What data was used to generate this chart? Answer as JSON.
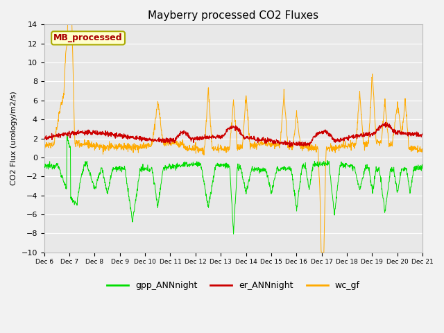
{
  "title": "Mayberry processed CO2 Fluxes",
  "ylabel": "CO2 Flux (urology/m2/s)",
  "ylim": [
    -10,
    14
  ],
  "yticks": [
    -10,
    -8,
    -6,
    -4,
    -2,
    0,
    2,
    4,
    6,
    8,
    10,
    12,
    14
  ],
  "n_points": 1500,
  "colors": {
    "gpp": "#00dd00",
    "er": "#cc0000",
    "wc": "#ffaa00"
  },
  "legend_labels": [
    "gpp_ANNnight",
    "er_ANNnight",
    "wc_gf"
  ],
  "box_label": "MB_processed",
  "box_color": "#aa0000",
  "box_bg": "#ffffcc",
  "box_edge": "#aaaa00",
  "background_color": "#e8e8e8",
  "grid_color": "#ffffff",
  "fig_bg": "#f2f2f2",
  "figsize": [
    6.4,
    4.8
  ],
  "dpi": 100
}
